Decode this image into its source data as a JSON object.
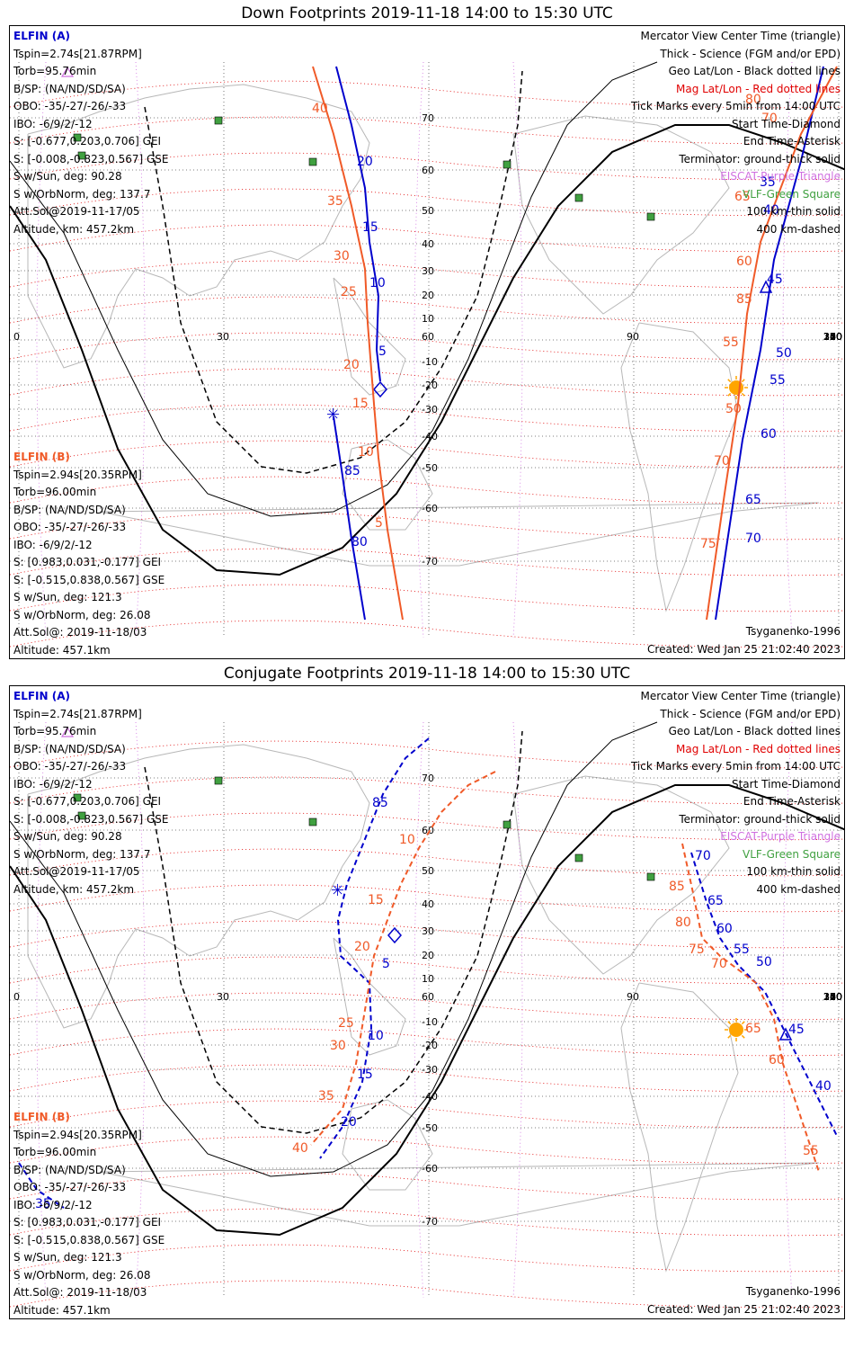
{
  "panels": [
    {
      "title": "Down Footprints 2019-11-18 14:00 to 15:30 UTC",
      "elfin_a": {
        "name": "ELFIN (A)",
        "lines": [
          "Tspin=2.74s[21.87RPM]",
          "Torb=95.76min",
          "B/SP: (NA/ND/SD/SA)",
          "OBO: -35/-27/-26/-33",
          "IBO: -6/9/2/-12",
          "S: [-0.677,0.203,0.706] GEI",
          "S: [-0.008,-0.823,0.567] GSE",
          "S w/Sun, deg: 90.28",
          "S w/OrbNorm, deg: 137.7",
          "Att.Sol@2019-11-17/05",
          "Altitude, km: 457.2km"
        ]
      },
      "elfin_b": {
        "name": "ELFIN (B)",
        "lines": [
          "Tspin=2.94s[20.35RPM]",
          "Torb=96.00min",
          "B/SP: (NA/ND/SD/SA)",
          "OBO: -35/-27/-26/-33",
          "IBO: -6/9/2/-12",
          "S: [0.983,0.031,-0.177] GEI",
          "S: [-0.515,0.838,0.567] GSE",
          "S w/Sun, deg: 121.3",
          "S w/OrbNorm, deg: 26.08",
          "Att.Sol@: 2019-11-18/03",
          "Altitude: 457.1km"
        ]
      },
      "legend": [
        {
          "text": "Mercator View Center Time (triangle)",
          "color": "#000000"
        },
        {
          "text": "Thick - Science (FGM and/or EPD)",
          "color": "#000000"
        },
        {
          "text": "Geo Lat/Lon - Black dotted lines",
          "color": "#000000"
        },
        {
          "text": "Mag Lat/Lon - Red dotted lines",
          "color": "#e00000"
        },
        {
          "text": "Tick Marks every 5min from 14:00 UTC",
          "color": "#000000"
        },
        {
          "text": "Start Time-Diamond",
          "color": "#000000"
        },
        {
          "text": "End Time-Asterisk",
          "color": "#000000"
        },
        {
          "text": "Terminator: ground-thick solid",
          "color": "#000000"
        },
        {
          "text": "EISCAT-Purple Triangle",
          "color": "#d070e0"
        },
        {
          "text": "VLF-Green Square",
          "color": "#40a040"
        },
        {
          "text": "100 km-thin solid",
          "color": "#000000"
        },
        {
          "text": "400 km-dashed",
          "color": "#000000"
        }
      ],
      "model": "Tsyganenko-1996",
      "created": "Created: Wed Jan 25 21:02:40 2023",
      "lon_labels": [
        "0",
        "30",
        "60",
        "90",
        "120",
        "150",
        "180",
        "210",
        "240",
        "270",
        "300",
        "330",
        "360"
      ],
      "lat_labels": [
        "70",
        "60",
        "50",
        "40",
        "30",
        "20",
        "10",
        "0",
        "-10",
        "-20",
        "-30",
        "-40",
        "-50",
        "-60",
        "-70"
      ],
      "blue_tick_labels": [
        "20",
        "15",
        "10",
        "5",
        "85",
        "80",
        "35",
        "40",
        "45",
        "50",
        "55",
        "60",
        "65",
        "70"
      ],
      "orange_tick_labels": [
        "40",
        "35",
        "30",
        "25",
        "20",
        "15",
        "10",
        "5",
        "70",
        "65",
        "60",
        "55",
        "50",
        "70",
        "75",
        "80",
        "85"
      ]
    },
    {
      "title": "Conjugate Footprints 2019-11-18 14:00 to 15:30 UTC",
      "elfin_a": {
        "name": "ELFIN (A)",
        "lines": [
          "Tspin=2.74s[21.87RPM]",
          "Torb=95.76min",
          "B/SP: (NA/ND/SD/SA)",
          "OBO: -35/-27/-26/-33",
          "IBO: -6/9/2/-12",
          "S: [-0.677,0.203,0.706] GEI",
          "S: [-0.008,-0.823,0.567] GSE",
          "S w/Sun, deg: 90.28",
          "S w/OrbNorm, deg: 137.7",
          "Att.Sol@2019-11-17/05",
          "Altitude, km: 457.2km"
        ]
      },
      "elfin_b": {
        "name": "ELFIN (B)",
        "lines": [
          "Tspin=2.94s[20.35RPM]",
          "Torb=96.00min",
          "B/SP: (NA/ND/SD/SA)",
          "OBO: -35/-27/-26/-33",
          "IBO: -6/9/2/-12",
          "S: [0.983,0.031,-0.177] GEI",
          "S: [-0.515,0.838,0.567] GSE",
          "S w/Sun, deg: 121.3",
          "S w/OrbNorm, deg: 26.08",
          "Att.Sol@: 2019-11-18/03",
          "Altitude: 457.1km"
        ]
      },
      "legend": [
        {
          "text": "Mercator View Center Time (triangle)",
          "color": "#000000"
        },
        {
          "text": "Thick - Science (FGM and/or EPD)",
          "color": "#000000"
        },
        {
          "text": "Geo Lat/Lon - Black dotted lines",
          "color": "#000000"
        },
        {
          "text": "Mag Lat/Lon - Red dotted lines",
          "color": "#e00000"
        },
        {
          "text": "Tick Marks every 5min from 14:00 UTC",
          "color": "#000000"
        },
        {
          "text": "Start Time-Diamond",
          "color": "#000000"
        },
        {
          "text": "End Time-Asterisk",
          "color": "#000000"
        },
        {
          "text": "Terminator: ground-thick solid",
          "color": "#000000"
        },
        {
          "text": "EISCAT-Purple Triangle",
          "color": "#d070e0"
        },
        {
          "text": "VLF-Green Square",
          "color": "#40a040"
        },
        {
          "text": "100 km-thin solid",
          "color": "#000000"
        },
        {
          "text": "400 km-dashed",
          "color": "#000000"
        }
      ],
      "model": "Tsyganenko-1996",
      "created": "Created: Wed Jan 25 21:02:40 2023",
      "lon_labels": [
        "0",
        "30",
        "60",
        "90",
        "120",
        "150",
        "180",
        "210",
        "240",
        "270",
        "300",
        "330",
        "360"
      ],
      "lat_labels": [
        "70",
        "60",
        "50",
        "40",
        "30",
        "20",
        "10",
        "0",
        "-10",
        "-20",
        "-30",
        "-40",
        "-50",
        "-60",
        "-70"
      ],
      "blue_tick_labels": [
        "85",
        "5",
        "10",
        "15",
        "20",
        "70",
        "65",
        "60",
        "55",
        "50",
        "45",
        "40",
        "35"
      ],
      "orange_tick_labels": [
        "10",
        "15",
        "20",
        "25",
        "30",
        "35",
        "40",
        "85",
        "80",
        "75",
        "70",
        "65",
        "60",
        "55"
      ]
    }
  ],
  "colors": {
    "elfin_a": "#0000cc",
    "elfin_b": "#f05a28",
    "mag_grid": "#e00000",
    "geo_grid": "#000000",
    "vlf": "#40a040",
    "eiscat": "#d070e0",
    "sun": "#ffa500"
  }
}
